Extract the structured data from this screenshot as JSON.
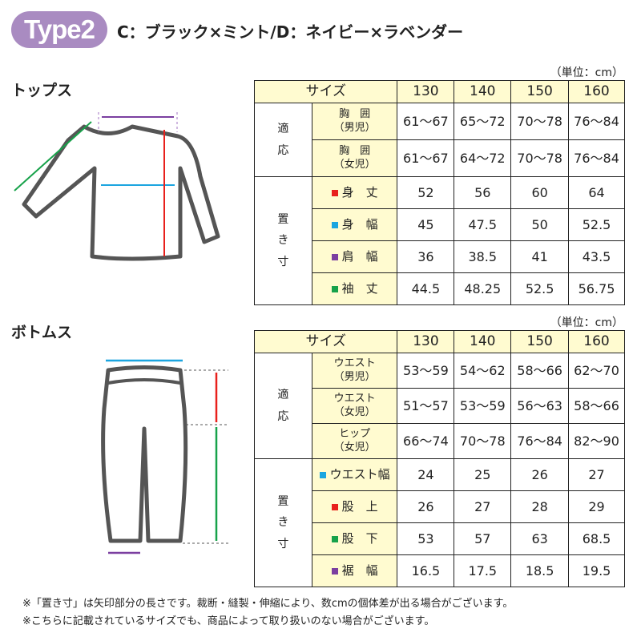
{
  "header": {
    "badge": "Type2",
    "subtitle": "C：ブラック×ミント/D：ネイビー×ラベンダー"
  },
  "colors": {
    "badge": "#a98bc1",
    "header_bg": "#fffbd0",
    "red": "#e8201c",
    "cyan": "#1ba5e0",
    "purple": "#7b3fa0",
    "green": "#17a24a"
  },
  "tops": {
    "section": "トップス",
    "unit": "（単位：cm）",
    "size_label": "サイズ",
    "sizes": [
      "130",
      "140",
      "150",
      "160"
    ],
    "fit_group": "適\n応",
    "fit_rows": [
      {
        "label1": "胸　囲",
        "label2": "（男児）",
        "values": [
          "61〜67",
          "65〜72",
          "70〜78",
          "76〜84"
        ]
      },
      {
        "label1": "胸　囲",
        "label2": "（女児）",
        "values": [
          "61〜67",
          "64〜72",
          "70〜78",
          "76〜84"
        ]
      }
    ],
    "flat_group": "置\nき\n寸",
    "flat_rows": [
      {
        "label": "身　丈",
        "color": "red",
        "values": [
          "52",
          "56",
          "60",
          "64"
        ]
      },
      {
        "label": "身　幅",
        "color": "cyan",
        "values": [
          "45",
          "47.5",
          "50",
          "52.5"
        ]
      },
      {
        "label": "肩　幅",
        "color": "purple",
        "values": [
          "36",
          "38.5",
          "41",
          "43.5"
        ]
      },
      {
        "label": "袖　丈",
        "color": "green",
        "values": [
          "44.5",
          "48.25",
          "52.5",
          "56.75"
        ]
      }
    ]
  },
  "bottoms": {
    "section": "ボトムス",
    "unit": "（単位：cm）",
    "size_label": "サイズ",
    "sizes": [
      "130",
      "140",
      "150",
      "160"
    ],
    "fit_group": "適\n応",
    "fit_rows": [
      {
        "label1": "ウエスト",
        "label2": "（男児）",
        "values": [
          "53〜59",
          "54〜62",
          "58〜66",
          "62〜70"
        ]
      },
      {
        "label1": "ウエスト",
        "label2": "（女児）",
        "values": [
          "51〜57",
          "53〜59",
          "56〜63",
          "58〜66"
        ]
      },
      {
        "label1": "ヒップ",
        "label2": "（女児）",
        "values": [
          "66〜74",
          "70〜78",
          "76〜84",
          "82〜90"
        ]
      }
    ],
    "flat_group": "置\nき\n寸",
    "flat_rows": [
      {
        "label": "ウエスト幅",
        "color": "cyan",
        "values": [
          "24",
          "25",
          "26",
          "27"
        ]
      },
      {
        "label": "股　上",
        "color": "red",
        "values": [
          "26",
          "27",
          "28",
          "29"
        ]
      },
      {
        "label": "股　下",
        "color": "green",
        "values": [
          "53",
          "57",
          "63",
          "68.5"
        ]
      },
      {
        "label": "裾　幅",
        "color": "purple",
        "values": [
          "16.5",
          "17.5",
          "18.5",
          "19.5"
        ]
      }
    ]
  },
  "notes": [
    "※「置き寸」は矢印部分の長さです。裁断・縫製・伸縮により、数cmの個体差が出る場合がございます。",
    "※こちらに記載されているサイズでも、商品によって取り扱いのない場合がございます。"
  ]
}
